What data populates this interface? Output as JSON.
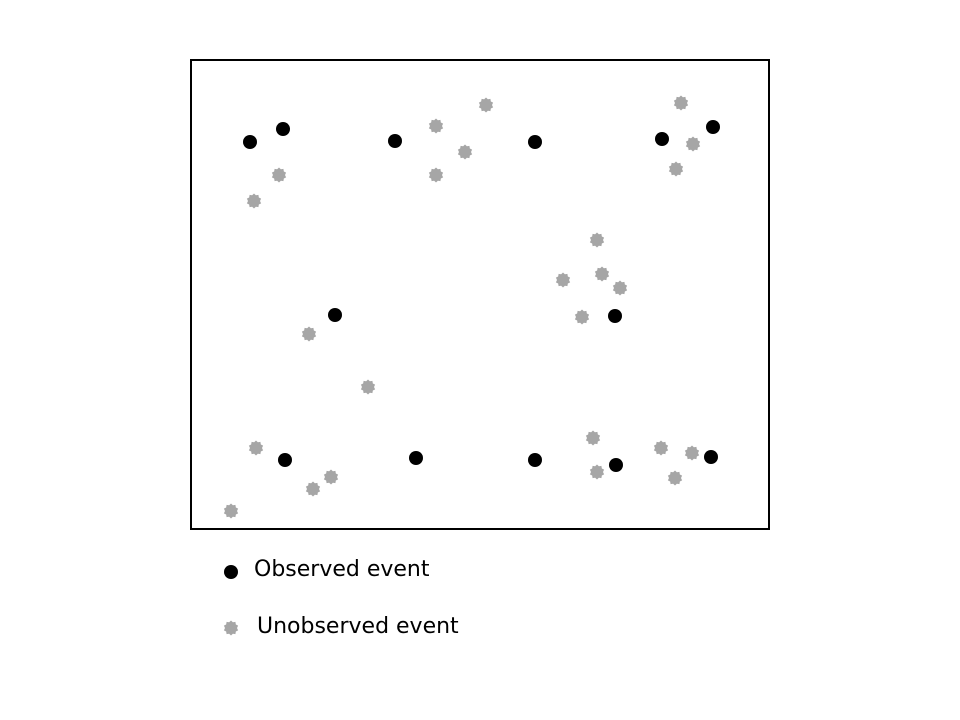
{
  "legend": {
    "observed_label": "Observed event",
    "unobserved_label": "Unobserved event"
  },
  "colors": {
    "observed": "#000000",
    "unobserved": "#a6a6a6",
    "frame": "#000000"
  },
  "icons": {
    "observed": "filled-circle",
    "unobserved": "gear-shaped-dot"
  }
}
